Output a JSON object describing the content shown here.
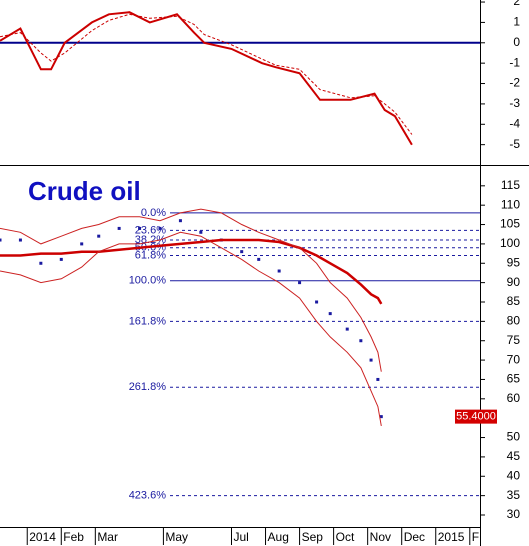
{
  "chart_data": [
    {
      "type": "line",
      "xlim": [
        -0.8,
        13.3
      ],
      "x": [
        -0.8,
        -0.2,
        0.4,
        0.7,
        1.1,
        1.9,
        2.4,
        3.0,
        3.6,
        4.4,
        4.9,
        5.2,
        6.0,
        6.9,
        7.3,
        8.0,
        8.6,
        9.5,
        10.2,
        10.5,
        10.8,
        11.3
      ],
      "series": [
        {
          "color": "#cc0000",
          "width": 2,
          "values": [
            0.1,
            0.7,
            -1.3,
            -1.3,
            0,
            1.0,
            1.4,
            1.5,
            1.0,
            1.4,
            0.5,
            0,
            -0.3,
            -1.0,
            -1.2,
            -1.5,
            -2.8,
            -2.8,
            -2.5,
            -3.3,
            -3.6,
            -5.0
          ]
        },
        {
          "color": "#cc0000",
          "width": 1,
          "dash": true,
          "values": [
            0.3,
            0.5,
            -0.5,
            -0.9,
            -0.5,
            0.6,
            1.1,
            1.4,
            1.2,
            1.3,
            0.9,
            0.4,
            -0.1,
            -0.8,
            -1.1,
            -1.3,
            -2.3,
            -2.7,
            -2.6,
            -3.0,
            -3.4,
            -4.5
          ]
        }
      ],
      "hline": 0,
      "hline_color": "#00008b",
      "ylim": [
        -5.9,
        2.1
      ],
      "yticks": [
        2,
        1,
        0,
        -1,
        -2,
        -3,
        -4,
        -5
      ]
    },
    {
      "type": "line",
      "title": "Crude oil",
      "xlim": [
        -0.8,
        13.3
      ],
      "x": [
        -0.8,
        -0.2,
        0.4,
        1.0,
        1.6,
        2.1,
        2.7,
        3.3,
        3.9,
        4.5,
        5.1,
        5.7,
        6.3,
        6.8,
        7.4,
        8.0,
        8.5,
        8.9,
        9.4,
        9.8,
        10.1,
        10.3,
        10.4
      ],
      "series": [
        {
          "color": "#1a1aa0",
          "style": "dots",
          "values": [
            101,
            101,
            95,
            96,
            100,
            102,
            104,
            104,
            104,
            106,
            103,
            101,
            98,
            96,
            93,
            90,
            85,
            82,
            78,
            75,
            70,
            65,
            55.4
          ]
        },
        {
          "color": "#cc0000",
          "width": 2.5,
          "values": [
            97,
            97,
            97.5,
            97.5,
            98,
            98,
            98.5,
            99,
            99.5,
            100,
            100.5,
            101,
            101,
            101,
            100.5,
            99,
            97,
            95,
            92.5,
            89.5,
            87,
            86,
            84.5
          ]
        },
        {
          "color": "#cc2222",
          "width": 1,
          "values": [
            104,
            103,
            100,
            102,
            104,
            105,
            107,
            107,
            106,
            108,
            109,
            108,
            105,
            103,
            101,
            99,
            95,
            90,
            86,
            81,
            76,
            72,
            67
          ]
        },
        {
          "color": "#cc2222",
          "width": 1,
          "values": [
            93,
            92,
            90,
            91,
            94,
            98,
            100,
            100,
            101,
            103,
            102,
            99,
            96,
            93,
            90,
            86,
            80,
            76,
            72,
            68,
            62,
            58,
            53
          ]
        }
      ],
      "fib_levels": [
        {
          "value": 108,
          "label": "0.0%"
        },
        {
          "value": 103.5,
          "label": "23.6%"
        },
        {
          "value": 101,
          "label": "38.2%"
        },
        {
          "value": 99,
          "label": "50.0%"
        },
        {
          "value": 97,
          "label": "61.8%"
        },
        {
          "value": 90.5,
          "label": "100.0%"
        },
        {
          "value": 80,
          "label": "161.8%"
        },
        {
          "value": 63,
          "label": "261.8%"
        },
        {
          "value": 35,
          "label": "423.6%"
        }
      ],
      "fib_color": "#1a1aa0",
      "last_value": {
        "value": 55.4,
        "label": "55.4000"
      },
      "ylim": [
        26.9,
        119.6
      ],
      "yticks": [
        115,
        110,
        105,
        100,
        95,
        90,
        85,
        80,
        75,
        70,
        65,
        60,
        50,
        45,
        40,
        35,
        30
      ],
      "xticks": [
        {
          "value": 0,
          "label": "2014"
        },
        {
          "value": 1,
          "label": "Feb"
        },
        {
          "value": 2,
          "label": "Mar"
        },
        {
          "value": 4,
          "label": "May"
        },
        {
          "value": 6,
          "label": "Jul"
        },
        {
          "value": 7,
          "label": "Aug"
        },
        {
          "value": 8,
          "label": "Sep"
        },
        {
          "value": 9,
          "label": "Oct"
        },
        {
          "value": 10,
          "label": "Nov"
        },
        {
          "value": 11,
          "label": "Dec"
        },
        {
          "value": 12,
          "label": "2015"
        },
        {
          "value": 13,
          "label": "F"
        }
      ]
    }
  ]
}
